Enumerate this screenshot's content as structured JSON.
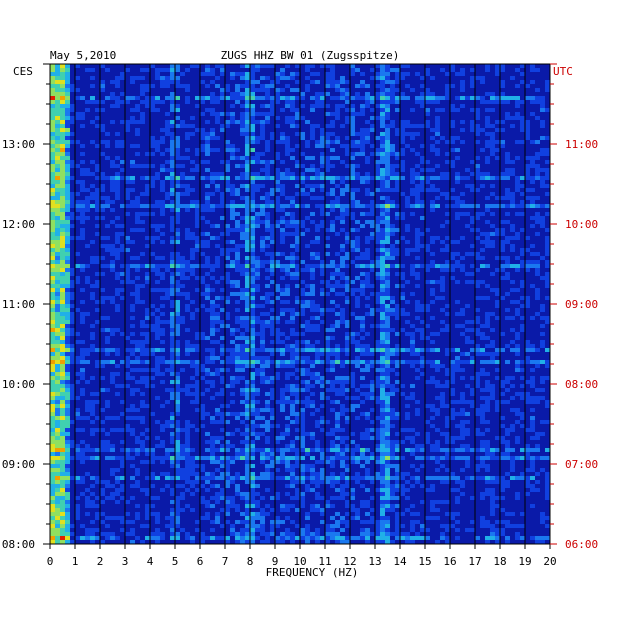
{
  "chart_data": {
    "type": "heatmap",
    "title": "ZUGS HHZ BW 01 (Zugsspitze)",
    "date": "May 5,2010",
    "left_timezone": "CES",
    "right_timezone": "UTC",
    "xlabel": "FREQUENCY (HZ)",
    "xlim": [
      0,
      20
    ],
    "x_ticks": [
      "0",
      "1",
      "2",
      "3",
      "4",
      "5",
      "6",
      "7",
      "8",
      "9",
      "10",
      "11",
      "12",
      "13",
      "14",
      "15",
      "16",
      "17",
      "18",
      "19",
      "20"
    ],
    "left_time_ticks": [
      "13:00",
      "12:00",
      "11:00",
      "10:00",
      "09:00",
      "08:00"
    ],
    "right_time_ticks": [
      "11:00",
      "10:00",
      "09:00",
      "08:00",
      "07:00",
      "06:00"
    ],
    "time_range_local": [
      "08:00",
      "14:00"
    ],
    "colors": {
      "background": "#0a1aa8",
      "left_axis_text": "#000000",
      "right_axis_text": "#cc0000",
      "grid": "#000000"
    },
    "bright_bands_hz": [
      0.2,
      0.5,
      4.9,
      7.9,
      13.3
    ]
  }
}
